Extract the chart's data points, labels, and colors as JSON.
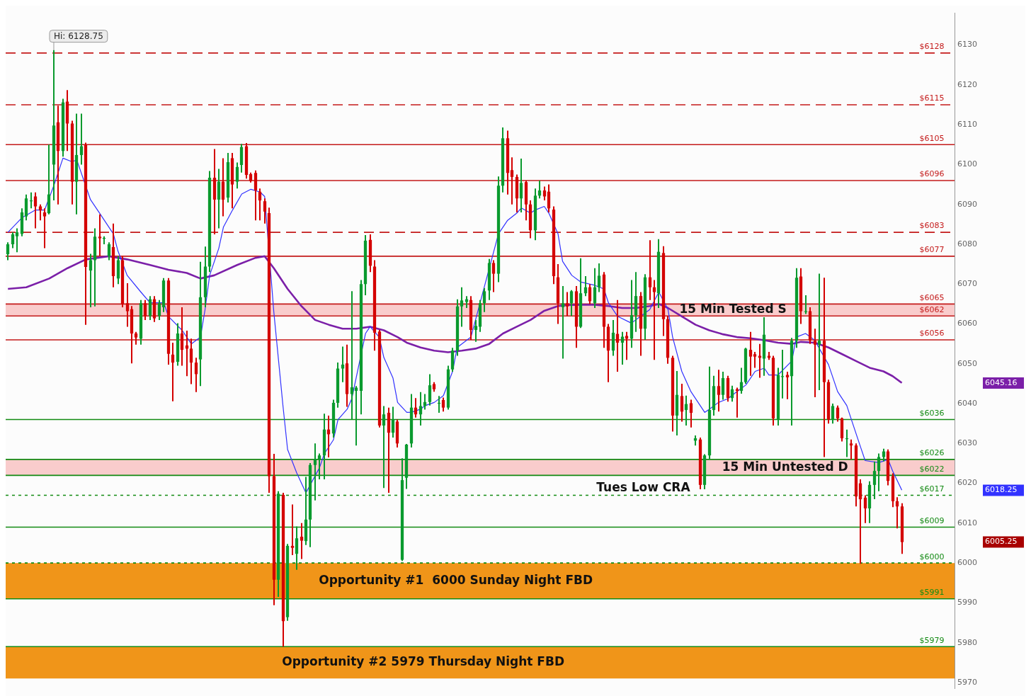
{
  "chart_data": {
    "type": "candlestick",
    "categories": [
      null,
      null,
      null,
      null,
      null,
      null,
      null,
      null,
      null,
      null,
      null,
      null,
      null,
      null,
      null,
      null,
      null,
      null,
      null,
      null,
      null,
      null,
      null,
      null,
      null,
      null,
      null,
      null,
      null,
      null,
      null,
      null,
      null,
      null,
      null,
      null,
      null,
      null,
      null,
      null,
      null,
      null,
      null,
      null,
      null,
      null,
      null,
      null,
      null,
      null,
      null,
      null,
      null,
      null,
      null,
      null,
      null,
      null,
      null,
      null,
      null,
      null,
      null,
      null,
      null,
      null,
      null,
      null,
      null,
      null,
      null,
      null,
      null,
      null,
      null,
      null,
      null,
      null,
      null,
      null,
      null,
      null,
      null,
      null,
      null,
      null,
      null,
      null,
      null,
      null,
      null,
      null,
      null,
      null,
      null,
      null,
      null,
      null,
      null,
      null,
      null,
      null,
      null,
      null,
      null,
      null,
      null,
      null,
      null,
      null,
      null,
      null,
      null,
      null,
      null,
      null,
      null,
      null,
      null,
      null,
      null,
      null,
      null,
      null,
      null,
      null,
      null,
      null,
      null,
      null,
      null,
      null,
      null,
      null,
      null,
      null,
      null,
      null,
      null,
      null,
      null,
      null,
      null,
      null,
      null,
      null,
      null,
      null,
      null,
      null,
      null,
      null,
      null,
      null,
      null,
      null,
      null,
      null,
      null,
      null,
      null,
      null,
      null,
      null,
      null,
      null,
      null,
      null,
      null,
      null,
      null,
      null,
      null,
      null,
      null,
      null,
      null,
      null,
      null,
      null,
      null,
      null,
      null,
      null,
      null,
      null,
      null,
      null,
      null,
      null,
      null,
      null,
      null,
      null,
      null,
      null
    ],
    "ohlc": [
      [
        6077.5,
        6080.5,
        6076,
        6080
      ],
      [
        6080,
        6083,
        6079,
        6082.5
      ],
      [
        6082,
        6084,
        6078,
        6083
      ],
      [
        6082.6,
        6089,
        6082,
        6088
      ],
      [
        6087,
        6092.5,
        6086,
        6091.5
      ],
      [
        6091,
        6093,
        6089,
        6091
      ],
      [
        6092,
        6093,
        6084,
        6089.5
      ],
      [
        6089.5,
        6090,
        6086,
        6088.5
      ],
      [
        6088,
        6089,
        6079,
        6087
      ],
      [
        6087.8,
        6105,
        6087.5,
        6092.5
      ],
      [
        6100,
        6128.75,
        6091,
        6109.8
      ],
      [
        6110.6,
        6114.8,
        6090,
        6103.4
      ],
      [
        6103.4,
        6116.5,
        6102,
        6115.6
      ],
      [
        6115.8,
        6118.7,
        6103.4,
        6110.3
      ],
      [
        6110.3,
        6111,
        6090,
        6095.7
      ],
      [
        6095.7,
        6112.8,
        6087.5,
        6102.4
      ],
      [
        6102.4,
        6112.8,
        6100,
        6104.6
      ],
      [
        6104.9,
        6105.5,
        6059.8,
        6074.3
      ],
      [
        6073.4,
        6077.6,
        6064.2,
        6076
      ],
      [
        6076,
        6084,
        6064.4,
        6081.9
      ],
      [
        6081.9,
        6087.5,
        6077.1,
        6081.5
      ],
      [
        6081.4,
        6082,
        6080,
        6081.6
      ],
      [
        6077,
        6080.5,
        6076,
        6080
      ],
      [
        6079.3,
        6085.2,
        6069.2,
        6072
      ],
      [
        6071.4,
        6077,
        6070,
        6076
      ],
      [
        6076,
        6077,
        6064.2,
        6064.9
      ],
      [
        6065.2,
        6070.2,
        6059.3,
        6063.2
      ],
      [
        6063.7,
        6064.5,
        6050.1,
        6057.6
      ],
      [
        6057.6,
        6058,
        6054.8,
        6056.6
      ],
      [
        6056.3,
        6066,
        6054.8,
        6065.2
      ],
      [
        6065.2,
        6066,
        6061,
        6062
      ],
      [
        6062,
        6067,
        6061,
        6066.2
      ],
      [
        6066.2,
        6067,
        6060.5,
        6061.4
      ],
      [
        6062,
        6066,
        6061,
        6065.2
      ],
      [
        6064.2,
        6071.5,
        6063,
        6070.9
      ],
      [
        6070.9,
        6071.5,
        6049.8,
        6052.5
      ],
      [
        6052.3,
        6055.3,
        6040.6,
        6050.3
      ],
      [
        6050.5,
        6060.2,
        6049.5,
        6057.6
      ],
      [
        6057.6,
        6064.2,
        6049.5,
        6053.5
      ],
      [
        6054.6,
        6058.3,
        6046.9,
        6053.8
      ],
      [
        6053.8,
        6056.3,
        6044.9,
        6050.3
      ],
      [
        6050.3,
        6051.5,
        6042.9,
        6047.4
      ],
      [
        6051.1,
        6075.6,
        6044.4,
        6066.7
      ],
      [
        6066.7,
        6079.4,
        6064.2,
        6074.4
      ],
      [
        6074.4,
        6098.4,
        6073,
        6096.7
      ],
      [
        6096.7,
        6103.9,
        6082.5,
        6091.2
      ],
      [
        6091.2,
        6098.9,
        6084,
        6095.7
      ],
      [
        6095.7,
        6101.6,
        6087,
        6091.2
      ],
      [
        6091.7,
        6102.9,
        6090.5,
        6100.6
      ],
      [
        6101.6,
        6102.9,
        6089,
        6095
      ],
      [
        6095.7,
        6100.5,
        6094,
        6099.4
      ],
      [
        6099.9,
        6105.2,
        6098,
        6104.4
      ],
      [
        6104.6,
        6105.4,
        6096.5,
        6097.4
      ],
      [
        6097.6,
        6098,
        6095.5,
        6095.9
      ],
      [
        6097.9,
        6098.5,
        6086,
        6093.5
      ],
      [
        6093.2,
        6094,
        6086,
        6091
      ],
      [
        6090.8,
        6091.5,
        6085.2,
        6088.2
      ],
      [
        6087.8,
        6089.2,
        6017.6,
        6021.8
      ],
      [
        6021.8,
        6027.4,
        5989.4,
        5995.8
      ],
      [
        5995.8,
        6018,
        5991.5,
        6017.4
      ],
      [
        6017.1,
        6017.6,
        5979,
        5985.4
      ],
      [
        5986.4,
        6004.8,
        5985.5,
        6004.3
      ],
      [
        6004.3,
        6014.7,
        6002,
        6003.8
      ],
      [
        6002.3,
        6009.2,
        5998.3,
        6006.2
      ],
      [
        6006.6,
        6010,
        6001,
        6005.6
      ],
      [
        6005.5,
        6021.6,
        6004.5,
        6010.9
      ],
      [
        6010.9,
        6025.1,
        6004,
        6024.6
      ],
      [
        6024.6,
        6030,
        6015.7,
        6026.1
      ],
      [
        6026.1,
        6027.5,
        6021,
        6027
      ],
      [
        6027,
        6037.5,
        6021,
        6033.5
      ],
      [
        6033.5,
        6037,
        6026.5,
        6032.3
      ],
      [
        6032.5,
        6041,
        6031.5,
        6040.2
      ],
      [
        6040.2,
        6050.3,
        6039,
        6048.8
      ],
      [
        6048.8,
        6054.3,
        6045.4,
        6049.8
      ],
      [
        6050.1,
        6054.8,
        6039.2,
        6042.4
      ],
      [
        6042.4,
        6068.2,
        6036,
        6044.1
      ],
      [
        6043.2,
        6044.4,
        6029.5,
        6044
      ],
      [
        6043.2,
        6071,
        6037.3,
        6070
      ],
      [
        6070,
        6082.3,
        6067.2,
        6080.9
      ],
      [
        6081.1,
        6082.5,
        6073,
        6074.6
      ],
      [
        6074.4,
        6076,
        6053.3,
        6057.8
      ],
      [
        6058.1,
        6058.5,
        6034,
        6034.5
      ],
      [
        6034.5,
        6039.4,
        6018.8,
        6037.3
      ],
      [
        6037.7,
        6039,
        6017.6,
        6032.7
      ],
      [
        6032.7,
        6039.2,
        6031.5,
        6036
      ],
      [
        6035.5,
        6036,
        6029,
        6030
      ],
      [
        6000.8,
        6026.3,
        6000.5,
        6020.8
      ],
      [
        6021.4,
        6029.9,
        6018.6,
        6029.7
      ],
      [
        6030,
        6042.4,
        6029,
        6039
      ],
      [
        6039,
        6041.4,
        6036.5,
        6037.3
      ],
      [
        6037.3,
        6042.9,
        6034.5,
        6039.4
      ],
      [
        6039.4,
        6042.4,
        6038.5,
        6040.4
      ],
      [
        6040.4,
        6047.4,
        6039.5,
        6044.6
      ],
      [
        6044.9,
        6045.4,
        6043,
        6043.6
      ],
      [
        6040.2,
        6041.9,
        6037.7,
        6040.2
      ],
      [
        6040.9,
        6041.5,
        6038,
        6039
      ],
      [
        6039,
        6049.5,
        6038.5,
        6048.6
      ],
      [
        6048.6,
        6054,
        6048,
        6053.3
      ],
      [
        6053.3,
        6066.2,
        6052,
        6064.4
      ],
      [
        6064.4,
        6069.2,
        6059.3,
        6065.9
      ],
      [
        6065.5,
        6067,
        6064,
        6066.2
      ],
      [
        6066,
        6067,
        6056,
        6058.5
      ],
      [
        6058.5,
        6061,
        6055.5,
        6059.5
      ],
      [
        6059.3,
        6066,
        6058,
        6065.2
      ],
      [
        6065.2,
        6069,
        6063,
        6068.2
      ],
      [
        6068.4,
        6076.3,
        6066,
        6075.3
      ],
      [
        6075.3,
        6076,
        6068,
        6072.6
      ],
      [
        6072.6,
        6097,
        6070.5,
        6094.7
      ],
      [
        6094.7,
        6109.3,
        6093,
        6106.6
      ],
      [
        6106.6,
        6108.5,
        6092.5,
        6097.9
      ],
      [
        6098.6,
        6101.8,
        6090,
        6096.9
      ],
      [
        6096.9,
        6097.5,
        6088,
        6091.5
      ],
      [
        6091.5,
        6101.5,
        6088,
        6095.4
      ],
      [
        6095.6,
        6096,
        6086,
        6090
      ],
      [
        6090,
        6091,
        6081.5,
        6083.5
      ],
      [
        6083.5,
        6094,
        6081,
        6092.2
      ],
      [
        6092.2,
        6096,
        6091.5,
        6093.5
      ],
      [
        6093.5,
        6094.5,
        6091,
        6092
      ],
      [
        6093.2,
        6095,
        6088,
        6089
      ],
      [
        6088.7,
        6089.5,
        6070,
        6072
      ],
      [
        6071.7,
        6075,
        6060,
        6065.2
      ],
      [
        6064.2,
        6069.5,
        6051.3,
        6065.2
      ],
      [
        6065.2,
        6068,
        6062,
        6064.4
      ],
      [
        6065.2,
        6068.5,
        6062,
        6068.2
      ],
      [
        6068.2,
        6069.5,
        6054,
        6059.3
      ],
      [
        6059.3,
        6076.5,
        6059,
        6067.7
      ],
      [
        6067.7,
        6072,
        6067,
        6069.2
      ],
      [
        6069.2,
        6070,
        6065,
        6065.7
      ],
      [
        6065.2,
        6074,
        6064,
        6069.2
      ],
      [
        6069.2,
        6075.2,
        6068,
        6072.1
      ],
      [
        6072.4,
        6073,
        6054,
        6059.3
      ],
      [
        6059.3,
        6060,
        6045.4,
        6053.3
      ],
      [
        6053.3,
        6061,
        6052,
        6057.8
      ],
      [
        6057.5,
        6066,
        6048,
        6055.3
      ],
      [
        6055.3,
        6058,
        6049.8,
        6056.8
      ],
      [
        6057,
        6058,
        6051,
        6056.3
      ],
      [
        6056.3,
        6071,
        6054,
        6062.2
      ],
      [
        6062.2,
        6073,
        6058,
        6067
      ],
      [
        6067,
        6068,
        6052,
        6058.8
      ],
      [
        6058.8,
        6072.5,
        6056,
        6071.7
      ],
      [
        6071.7,
        6081,
        6066,
        6069.2
      ],
      [
        6069.2,
        6071,
        6051,
        6068
      ],
      [
        6067.7,
        6081.3,
        6064,
        6078.1
      ],
      [
        6077.8,
        6079.5,
        6057,
        6061.2
      ],
      [
        6061.2,
        6062,
        6050,
        6051.5
      ],
      [
        6051.5,
        6052,
        6033,
        6037
      ],
      [
        6037,
        6048.2,
        6032,
        6042.2
      ],
      [
        6041.9,
        6045,
        6035.5,
        6038
      ],
      [
        6038.4,
        6042,
        6034.5,
        6039.9
      ],
      [
        6040.1,
        6041,
        6034,
        6037.7
      ],
      [
        6030.7,
        6032,
        6029.5,
        6031.3
      ],
      [
        6031,
        6031.5,
        6018.5,
        6019.6
      ],
      [
        6019.6,
        6027.3,
        6018.5,
        6027
      ],
      [
        6027,
        6049.3,
        6026,
        6038.4
      ],
      [
        6038.4,
        6047,
        6037,
        6044.4
      ],
      [
        6044.4,
        6048.5,
        6038,
        6042.2
      ],
      [
        6042.2,
        6048,
        6041,
        6046.4
      ],
      [
        6046.4,
        6047,
        6040.5,
        6041.4
      ],
      [
        6041.4,
        6044.5,
        6040.5,
        6043.6
      ],
      [
        6043.6,
        6044,
        6036.5,
        6043.2
      ],
      [
        6043.2,
        6049,
        6042.5,
        6045.4
      ],
      [
        6045.4,
        6054,
        6045,
        6053.8
      ],
      [
        6053.5,
        6058,
        6047,
        6051.8
      ],
      [
        6052.4,
        6053,
        6049,
        6051.8
      ],
      [
        6052,
        6055,
        6046.5,
        6051.5
      ],
      [
        6051.3,
        6061.7,
        6047,
        6057.3
      ],
      [
        6052,
        6053,
        6051,
        6051.5
      ],
      [
        6051.5,
        6052,
        6034.5,
        6036.3
      ],
      [
        6036,
        6049,
        6034.5,
        6047.2
      ],
      [
        6046.9,
        6053.5,
        6041.3,
        6046.9
      ],
      [
        6047.2,
        6048,
        6041.1,
        6046.6
      ],
      [
        6046.9,
        6056.5,
        6034.5,
        6055.8
      ],
      [
        6055.8,
        6074,
        6054,
        6071.6
      ],
      [
        6071.9,
        6074,
        6060,
        6063.2
      ],
      [
        6063.2,
        6067.2,
        6062.5,
        6063.2
      ],
      [
        6063.2,
        6064.2,
        6055,
        6055.8
      ],
      [
        6055.8,
        6058.8,
        6041.6,
        6054.8
      ],
      [
        6054.8,
        6072.6,
        6043.4,
        6055.8
      ],
      [
        6055.8,
        6071.6,
        6026.6,
        6045.4
      ],
      [
        6045.4,
        6046,
        6035,
        6036
      ],
      [
        6036,
        6040,
        6035,
        6039.4
      ],
      [
        6039,
        6039.5,
        6035.5,
        6036.3
      ],
      [
        6036.3,
        6036.5,
        6030.5,
        6031.3
      ],
      [
        6031.3,
        6033.5,
        6026.6,
        6031.3
      ],
      [
        6030,
        6031,
        6026,
        6029.5
      ],
      [
        6029.5,
        6030,
        6014.2,
        6016.7
      ],
      [
        6020,
        6021,
        5999.8,
        6016
      ],
      [
        6016.4,
        6017,
        6010,
        6013.7
      ],
      [
        6013.7,
        6020.5,
        6010,
        6019.6
      ],
      [
        6019.6,
        6025.5,
        6016,
        6023.1
      ],
      [
        6023.1,
        6027.5,
        6018,
        6026.6
      ],
      [
        6026.6,
        6028.7,
        6025.5,
        6028
      ],
      [
        6028,
        6028.5,
        6019.5,
        6020.6
      ],
      [
        6021.8,
        6022.5,
        6014,
        6015.5
      ],
      [
        6015.5,
        6016.5,
        6008.7,
        6014.2
      ],
      [
        6014.2,
        6015,
        6002.3,
        6005.25
      ]
    ],
    "colors": [
      "#0a9a2e",
      "#0a9a2e",
      "#0a9a2e",
      "#0a9a2e",
      "#0a9a2e",
      "#0a9a2e",
      "#d40000",
      "#d40000",
      "#d40000",
      "#0a9a2e",
      "#0a9a2e",
      "#d40000",
      "#0a9a2e",
      "#d40000",
      "#d40000",
      "#0a9a2e",
      "#0a9a2e",
      "#d40000",
      "#0a9a2e",
      "#0a9a2e",
      "#d40000",
      "#0a9a2e",
      "#0a9a2e",
      "#d40000",
      "#0a9a2e",
      "#d40000",
      "#d40000",
      "#d40000",
      "#d40000",
      "#0a9a2e",
      "#d40000",
      "#0a9a2e",
      "#d40000",
      "#0a9a2e",
      "#0a9a2e",
      "#d40000",
      "#d40000",
      "#0a9a2e",
      "#d40000",
      "#d40000",
      "#d40000",
      "#d40000",
      "#0a9a2e",
      "#0a9a2e",
      "#0a9a2e",
      "#d40000",
      "#0a9a2e",
      "#d40000",
      "#0a9a2e",
      "#d40000",
      "#0a9a2e",
      "#0a9a2e",
      "#d40000",
      "#d40000",
      "#d40000",
      "#d40000",
      "#d40000",
      "#d40000",
      "#d40000",
      "#0a9a2e",
      "#d40000",
      "#0a9a2e",
      "#d40000",
      "#0a9a2e",
      "#d40000",
      "#0a9a2e",
      "#0a9a2e",
      "#0a9a2e",
      "#0a9a2e",
      "#0a9a2e",
      "#d40000",
      "#0a9a2e",
      "#0a9a2e",
      "#0a9a2e",
      "#d40000",
      "#0a9a2e",
      "#0a9a2e",
      "#0a9a2e",
      "#0a9a2e",
      "#d40000",
      "#d40000",
      "#d40000",
      "#0a9a2e",
      "#d40000",
      "#0a9a2e",
      "#d40000",
      "#0a9a2e",
      "#0a9a2e",
      "#0a9a2e",
      "#d40000",
      "#0a9a2e",
      "#0a9a2e",
      "#0a9a2e",
      "#d40000",
      "#0a9a2e",
      "#d40000",
      "#0a9a2e",
      "#0a9a2e",
      "#0a9a2e",
      "#0a9a2e",
      "#0a9a2e",
      "#d40000",
      "#0a9a2e",
      "#0a9a2e",
      "#0a9a2e",
      "#0a9a2e",
      "#d40000",
      "#0a9a2e",
      "#0a9a2e",
      "#d40000",
      "#d40000",
      "#d40000",
      "#0a9a2e",
      "#d40000",
      "#d40000",
      "#0a9a2e",
      "#0a9a2e",
      "#d40000",
      "#d40000",
      "#d40000",
      "#d40000",
      "#0a9a2e",
      "#d40000",
      "#0a9a2e",
      "#d40000",
      "#0a9a2e",
      "#0a9a2e",
      "#d40000",
      "#0a9a2e",
      "#0a9a2e",
      "#d40000",
      "#d40000",
      "#0a9a2e",
      "#d40000",
      "#0a9a2e",
      "#d40000",
      "#0a9a2e",
      "#0a9a2e",
      "#d40000",
      "#0a9a2e",
      "#d40000",
      "#d40000",
      "#0a9a2e",
      "#d40000",
      "#d40000",
      "#d40000",
      "#0a9a2e",
      "#d40000",
      "#0a9a2e",
      "#d40000",
      "#0a9a2e",
      "#d40000",
      "#0a9a2e",
      "#0a9a2e",
      "#0a9a2e",
      "#d40000",
      "#0a9a2e",
      "#d40000",
      "#0a9a2e",
      "#d40000",
      "#0a9a2e",
      "#0a9a2e",
      "#d40000",
      "#d40000",
      "#d40000",
      "#0a9a2e",
      "#d40000",
      "#d40000",
      "#0a9a2e",
      "#0a9a2e",
      "#d40000",
      "#0a9a2e",
      "#0a9a2e",
      "#d40000",
      "#0a9a2e",
      "#d40000",
      "#d40000",
      "#0a9a2e",
      "#d40000",
      "#d40000",
      "#0a9a2e",
      "#d40000",
      "#d40000",
      "#0a9a2e",
      "#d40000",
      "#d40000",
      "#d40000",
      "#d40000",
      "#0a9a2e",
      "#0a9a2e",
      "#0a9a2e",
      "#0a9a2e",
      "#d40000",
      "#d40000",
      "#d40000",
      "#d40000"
    ],
    "series": [
      {
        "type": "line",
        "color": "#3232ff",
        "values": [
          6083,
          null,
          null,
          6086.6,
          null,
          null,
          6088.6,
          null,
          6088.6,
          null,
          6094.7,
          null,
          6101.6,
          null,
          6100.7,
          6101.2,
          null,
          null,
          6091.2,
          null,
          6087.8,
          null,
          null,
          6082.6,
          6078.3,
          null,
          6072.2,
          null,
          null,
          6068,
          null,
          6065.3,
          null,
          null,
          6065.3,
          6061.9,
          null,
          null,
          6058.4,
          null,
          6055,
          null,
          6056.7,
          6063.6,
          6072.2,
          null,
          6079,
          6084.3,
          null,
          6088.6,
          null,
          6092.6,
          null,
          6093.8,
          null,
          6093.1,
          6092,
          null,
          6063,
          null,
          6039.4,
          6028.5,
          null,
          6022.6,
          null,
          6017.6,
          null,
          null,
          6024,
          6027.4,
          null,
          6030.9,
          6036,
          null,
          6038.6,
          6041.2,
          null,
          null,
          6057.6,
          6059.3,
          null,
          6056.7,
          6051.6,
          null,
          6046.4,
          6040.3,
          null,
          6037.8,
          6037.8,
          null,
          6038.6,
          6039.5,
          null,
          6040.3,
          null,
          6042,
          null,
          6048.1,
          6054.1,
          null,
          null,
          6056.7,
          null,
          null,
          null,
          null,
          null,
          6082.6,
          null,
          6086,
          null,
          6087.8,
          6089.1,
          null,
          6087.8,
          6088.6,
          null,
          6089.5,
          6087.8,
          null,
          6082.6,
          6075.7,
          null,
          6072.2,
          null,
          6070.5,
          null,
          null,
          6069.7,
          null,
          6068.8,
          6065.3,
          null,
          6061.9,
          null,
          null,
          6060.2,
          null,
          6061.9,
          null,
          6063.6,
          null,
          6068,
          null,
          6063.6,
          6056.7,
          null,
          6048.1,
          null,
          6043,
          null,
          null,
          6037.8,
          6038.6,
          null,
          6040.3,
          null,
          6041.2,
          null,
          6043,
          null,
          6044.7,
          null,
          6048.1,
          null,
          6048.9,
          6047.2,
          null,
          6047.2,
          null,
          null,
          6050.7,
          6056.7,
          null,
          6057.6,
          null,
          6055.9,
          null,
          null,
          6049.8,
          null,
          6043,
          null,
          6039.5,
          6036,
          null,
          6029.1,
          6025.7,
          null,
          null,
          6025.2,
          null,
          6026,
          6023.1,
          null,
          6018.3
        ]
      },
      {
        "type": "line",
        "color": "#7b1fa8",
        "values": [
          6068.8,
          null,
          null,
          null,
          6069.2,
          null,
          null,
          null,
          null,
          6071.4,
          null,
          null,
          null,
          6074,
          null,
          null,
          null,
          6076.2,
          null,
          null,
          null,
          null,
          6077,
          null,
          null,
          null,
          6076.2,
          null,
          null,
          null,
          null,
          6074.8,
          null,
          null,
          null,
          6073.6,
          null,
          null,
          null,
          6072.8,
          null,
          null,
          6071.4,
          null,
          null,
          6072.2,
          null,
          null,
          null,
          null,
          6074.8,
          null,
          null,
          null,
          6076.6,
          null,
          6077,
          null,
          6074,
          null,
          null,
          6068.8,
          null,
          null,
          6064.5,
          null,
          null,
          6061,
          null,
          null,
          6059.8,
          null,
          null,
          6058.8,
          null,
          null,
          6058.8,
          null,
          null,
          6059.3,
          null,
          null,
          6058.4,
          null,
          null,
          6056.7,
          null,
          6055.3,
          null,
          null,
          6054.1,
          null,
          null,
          6053.3,
          null,
          null,
          6052.9,
          null,
          null,
          6053.3,
          null,
          null,
          6053.8,
          null,
          null,
          6055,
          null,
          null,
          6057.6,
          null,
          null,
          6059.3,
          null,
          null,
          6061,
          null,
          null,
          6063.3,
          null,
          null,
          6064.5,
          null,
          6064.7,
          null,
          null,
          6064.8,
          null,
          null,
          6064.8,
          null,
          null,
          6064.5,
          null,
          null,
          6064,
          null,
          null,
          6064,
          null,
          null,
          6064.5,
          null,
          6065,
          null,
          6064,
          null,
          null,
          6061.9,
          null,
          null,
          6059.8,
          null,
          null,
          6058.4,
          null,
          null,
          6057.4,
          null,
          null,
          6056.7,
          null,
          null,
          6056.4,
          null,
          null,
          6055.9,
          null,
          null,
          6055.3,
          null,
          null,
          6055,
          null,
          6055.5,
          null,
          null,
          6055.3,
          null,
          null,
          6054.1,
          null,
          null,
          6052.4,
          null,
          null,
          6050.7,
          null,
          null,
          6049,
          null,
          null,
          6048.1,
          null,
          6046.9,
          null,
          6045.2
        ]
      }
    ],
    "ylim": [
      5968.5,
      6138
    ],
    "yticks": [
      5970,
      5980,
      5990,
      6000,
      6010,
      6020,
      6030,
      6040,
      6050,
      6060,
      6070,
      6080,
      6090,
      6100,
      6110,
      6120,
      6130
    ],
    "tick_labels": "y",
    "grid": false,
    "legend": false,
    "ref_lines": [
      {
        "axis": "y",
        "value": 6128,
        "label": "$6128",
        "color": "#c41a1a",
        "line_style": "dashed"
      },
      {
        "axis": "y",
        "value": 6115,
        "label": "$6115",
        "color": "#c41a1a",
        "line_style": "dashed"
      },
      {
        "axis": "y",
        "value": 6105,
        "label": "$6105",
        "color": "#c41a1a",
        "line_style": "solid"
      },
      {
        "axis": "y",
        "value": 6096,
        "label": "$6096",
        "color": "#c41a1a",
        "line_style": "solid"
      },
      {
        "axis": "y",
        "value": 6083,
        "label": "$6083",
        "color": "#c41a1a",
        "line_style": "dashed"
      },
      {
        "axis": "y",
        "value": 6077,
        "label": "$6077",
        "color": "#c41a1a",
        "line_style": "solid"
      },
      {
        "axis": "y",
        "value": 6065,
        "label": "$6065",
        "color": "#c41a1a",
        "line_style": "solid"
      },
      {
        "axis": "y",
        "value": 6062,
        "label": "$6062",
        "color": "#c41a1a",
        "line_style": "solid"
      },
      {
        "axis": "y",
        "value": 6056,
        "label": "$6056",
        "color": "#c41a1a",
        "line_style": "solid"
      },
      {
        "axis": "y",
        "value": 6036,
        "label": "$6036",
        "color": "#138a13",
        "line_style": "solid"
      },
      {
        "axis": "y",
        "value": 6026,
        "label": "$6026",
        "color": "#138a13",
        "line_style": "solid"
      },
      {
        "axis": "y",
        "value": 6022,
        "label": "$6022",
        "color": "#138a13",
        "line_style": "solid"
      },
      {
        "axis": "y",
        "value": 6017,
        "label": "$6017",
        "color": "#138a13",
        "line_style": "dotted"
      },
      {
        "axis": "y",
        "value": 6009,
        "label": "$6009",
        "color": "#138a13",
        "line_style": "solid"
      },
      {
        "axis": "y",
        "value": 6000,
        "label": "$6000",
        "color": "#138a13",
        "line_style": "dotted"
      },
      {
        "axis": "y",
        "value": 5991,
        "label": "$5991",
        "color": "#138a13",
        "line_style": "solid"
      },
      {
        "axis": "y",
        "value": 5979,
        "label": "$5979",
        "color": "#138a13",
        "line_style": "solid"
      }
    ],
    "bands": [
      {
        "axis": "y",
        "from": 5991,
        "to": 6000,
        "label": "Opportunity #1  6000 Sunday Night FBD",
        "color": "#ee8a00"
      },
      {
        "axis": "y",
        "from": 5971,
        "to": 5979,
        "label": "Opportunity #2 5979 Thursday Night FBD",
        "color": "#ee8a00"
      },
      {
        "axis": "y",
        "from": 6062,
        "to": 6065,
        "label": "15 Min Tested S",
        "color": "#f8c6c6"
      },
      {
        "axis": "y",
        "from": 6022,
        "to": 6026,
        "label": "15 Min Untested D",
        "color": "#f8c6c6"
      }
    ],
    "annotations": [
      {
        "text": "Hi: 6128.75",
        "y": 6128.75
      },
      {
        "text": "Tues Low CRA",
        "y": 6017
      },
      "6045.16",
      "6018.25",
      "6005.25"
    ]
  }
}
